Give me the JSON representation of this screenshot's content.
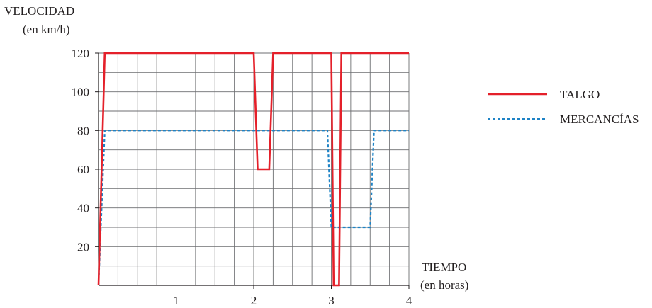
{
  "chart_data": {
    "type": "line",
    "ylabel_line1": "VELOCIDAD",
    "ylabel_line2": "(en km/h)",
    "xlabel_line1": "TIEMPO",
    "xlabel_line2": "(en horas)",
    "xlim": [
      0,
      4
    ],
    "ylim": [
      0,
      120
    ],
    "x_ticks": [
      1,
      2,
      3,
      4
    ],
    "y_ticks": [
      20,
      40,
      60,
      80,
      100,
      120
    ],
    "grid": true,
    "legend_position": "right",
    "series": [
      {
        "name": "TALGO",
        "color": "#e4202a",
        "style": "solid",
        "points": [
          [
            0,
            0
          ],
          [
            0.08,
            120
          ],
          [
            2.0,
            120
          ],
          [
            2.05,
            60
          ],
          [
            2.2,
            60
          ],
          [
            2.25,
            120
          ],
          [
            3.0,
            120
          ],
          [
            3.03,
            0
          ],
          [
            3.1,
            0
          ],
          [
            3.13,
            120
          ],
          [
            4.0,
            120
          ]
        ]
      },
      {
        "name": "MERCANCÍAS",
        "color": "#1e83c6",
        "style": "dotted",
        "points": [
          [
            0,
            0
          ],
          [
            0.08,
            80
          ],
          [
            2.95,
            80
          ],
          [
            3.0,
            30
          ],
          [
            3.5,
            30
          ],
          [
            3.55,
            80
          ],
          [
            4.0,
            80
          ]
        ]
      }
    ]
  }
}
